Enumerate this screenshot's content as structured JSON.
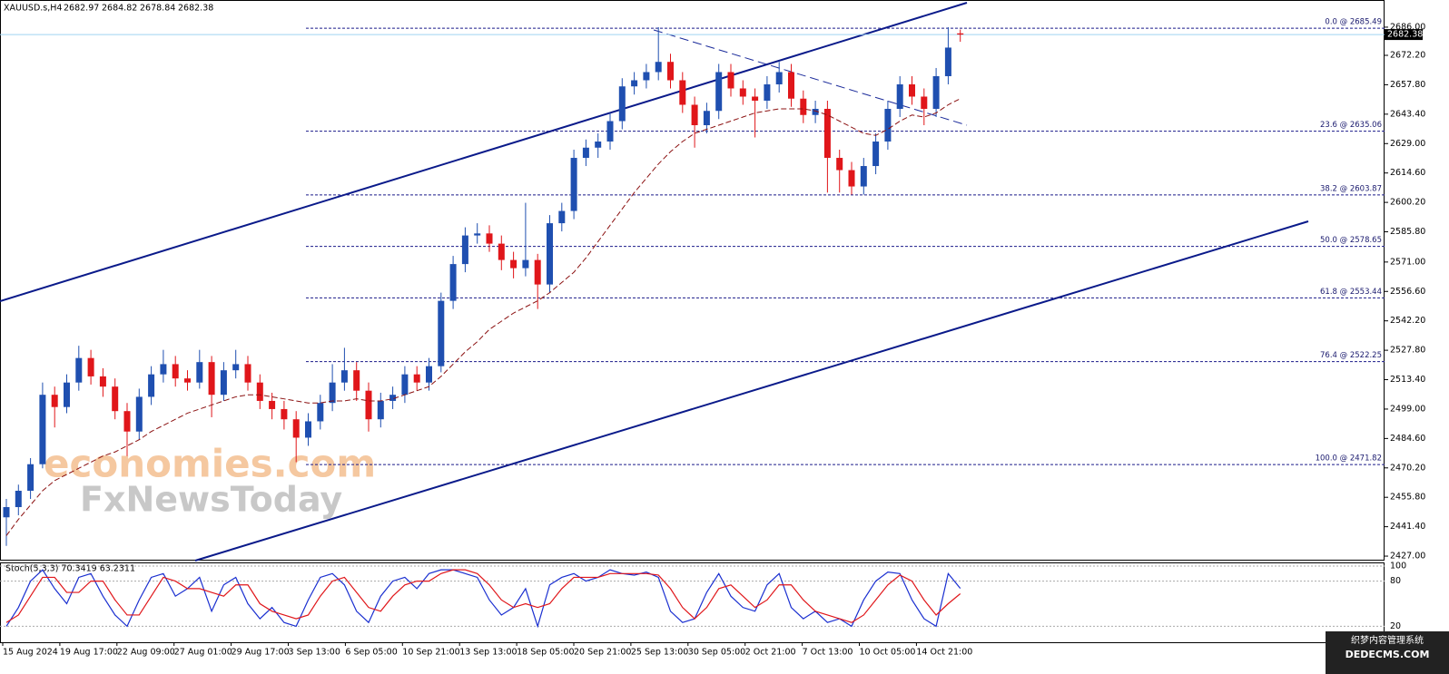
{
  "header": {
    "symbol": "XAUUSD.s,H4"
  },
  "chart_data": [
    {
      "type": "candlestick",
      "up_color": "#1f4fb0",
      "down_color": "#e0161a",
      "ma_color": "#8b1010",
      "ylim": [
        2424.8,
        2699.3
      ],
      "yticks": [
        {
          "value": 2686,
          "label": "2686.00"
        },
        {
          "value": 2672.2,
          "label": "2672.20"
        },
        {
          "value": 2657.8,
          "label": "2657.80"
        },
        {
          "value": 2643.4,
          "label": "2643.40"
        },
        {
          "value": 2629,
          "label": "2629.00"
        },
        {
          "value": 2614.6,
          "label": "2614.60"
        },
        {
          "value": 2600.2,
          "label": "2600.20"
        },
        {
          "value": 2585.8,
          "label": "2585.80"
        },
        {
          "value": 2571,
          "label": "2571.00"
        },
        {
          "value": 2556.6,
          "label": "2556.60"
        },
        {
          "value": 2542.2,
          "label": "2542.20"
        },
        {
          "value": 2527.8,
          "label": "2527.80"
        },
        {
          "value": 2513.4,
          "label": "2513.40"
        },
        {
          "value": 2499,
          "label": "2499.00"
        },
        {
          "value": 2484.6,
          "label": "2484.60"
        },
        {
          "value": 2470.2,
          "label": "2470.20"
        },
        {
          "value": 2455.8,
          "label": "2455.80"
        },
        {
          "value": 2441.4,
          "label": "2441.40"
        },
        {
          "value": 2427,
          "label": "2427.00"
        }
      ],
      "fib_levels": [
        {
          "value": 2685.49,
          "label": "0.0 @ 2685.49"
        },
        {
          "value": 2635.06,
          "label": "23.6 @ 2635.06"
        },
        {
          "value": 2603.87,
          "label": "38.2 @ 2603.87"
        },
        {
          "value": 2578.65,
          "label": "50.0 @ 2578.65"
        },
        {
          "value": 2553.44,
          "label": "61.8 @ 2553.44"
        },
        {
          "value": 2522.25,
          "label": "76.4 @ 2522.25"
        },
        {
          "value": 2471.82,
          "label": "100.0 @ 2471.82"
        }
      ],
      "candles": [
        [
          2446,
          2455,
          2432,
          2451
        ],
        [
          2451,
          2462,
          2447,
          2459
        ],
        [
          2459,
          2475,
          2455,
          2472
        ],
        [
          2472,
          2512,
          2470,
          2506
        ],
        [
          2506,
          2510,
          2490,
          2500
        ],
        [
          2500,
          2516,
          2497,
          2512
        ],
        [
          2512,
          2530,
          2508,
          2524
        ],
        [
          2524,
          2528,
          2511,
          2515
        ],
        [
          2515,
          2519,
          2505,
          2510
        ],
        [
          2510,
          2514,
          2494,
          2498
        ],
        [
          2498,
          2502,
          2476,
          2488
        ],
        [
          2488,
          2509,
          2484,
          2505
        ],
        [
          2505,
          2520,
          2501,
          2516
        ],
        [
          2516,
          2528,
          2512,
          2521
        ],
        [
          2521,
          2525,
          2510,
          2514
        ],
        [
          2514,
          2518,
          2508,
          2512
        ],
        [
          2512,
          2528,
          2509,
          2522
        ],
        [
          2522,
          2525,
          2495,
          2506
        ],
        [
          2506,
          2522,
          2503,
          2518
        ],
        [
          2518,
          2528,
          2514,
          2521
        ],
        [
          2521,
          2525,
          2508,
          2512
        ],
        [
          2512,
          2516,
          2499,
          2503
        ],
        [
          2503,
          2507,
          2494,
          2499
        ],
        [
          2499,
          2503,
          2489,
          2494
        ],
        [
          2494,
          2498,
          2473,
          2485
        ],
        [
          2485,
          2497,
          2481,
          2493
        ],
        [
          2493,
          2506,
          2489,
          2502
        ],
        [
          2502,
          2521,
          2498,
          2512
        ],
        [
          2512,
          2529,
          2508,
          2518
        ],
        [
          2518,
          2522,
          2503,
          2508
        ],
        [
          2508,
          2512,
          2488,
          2494
        ],
        [
          2494,
          2507,
          2490,
          2503
        ],
        [
          2503,
          2510,
          2499,
          2506
        ],
        [
          2506,
          2520,
          2502,
          2516
        ],
        [
          2516,
          2520,
          2508,
          2512
        ],
        [
          2512,
          2524,
          2508,
          2520
        ],
        [
          2520,
          2556,
          2517,
          2552
        ],
        [
          2552,
          2574,
          2548,
          2570
        ],
        [
          2570,
          2588,
          2566,
          2584
        ],
        [
          2584,
          2590,
          2580,
          2585
        ],
        [
          2585,
          2589,
          2576,
          2580
        ],
        [
          2580,
          2584,
          2567,
          2572
        ],
        [
          2572,
          2576,
          2563,
          2568
        ],
        [
          2568,
          2600,
          2564,
          2572
        ],
        [
          2572,
          2575,
          2548,
          2560
        ],
        [
          2560,
          2594,
          2556,
          2590
        ],
        [
          2590,
          2600,
          2586,
          2596
        ],
        [
          2596,
          2626,
          2592,
          2622
        ],
        [
          2622,
          2631,
          2618,
          2627
        ],
        [
          2627,
          2634,
          2622,
          2630
        ],
        [
          2630,
          2644,
          2626,
          2640
        ],
        [
          2640,
          2661,
          2636,
          2657
        ],
        [
          2657,
          2664,
          2653,
          2660
        ],
        [
          2660,
          2668,
          2656,
          2664
        ],
        [
          2664,
          2686,
          2660,
          2669
        ],
        [
          2669,
          2673,
          2656,
          2660
        ],
        [
          2660,
          2664,
          2644,
          2648
        ],
        [
          2648,
          2652,
          2627,
          2638
        ],
        [
          2638,
          2649,
          2634,
          2645
        ],
        [
          2645,
          2668,
          2641,
          2664
        ],
        [
          2664,
          2668,
          2652,
          2656
        ],
        [
          2656,
          2660,
          2648,
          2652
        ],
        [
          2652,
          2656,
          2632,
          2650
        ],
        [
          2650,
          2662,
          2646,
          2658
        ],
        [
          2658,
          2669,
          2654,
          2664
        ],
        [
          2664,
          2668,
          2647,
          2651
        ],
        [
          2651,
          2655,
          2639,
          2643
        ],
        [
          2643,
          2650,
          2639,
          2646
        ],
        [
          2646,
          2650,
          2605,
          2622
        ],
        [
          2622,
          2626,
          2605,
          2616
        ],
        [
          2616,
          2620,
          2604,
          2608
        ],
        [
          2608,
          2622,
          2604,
          2618
        ],
        [
          2618,
          2634,
          2614,
          2630
        ],
        [
          2630,
          2650,
          2626,
          2646
        ],
        [
          2646,
          2662,
          2642,
          2658
        ],
        [
          2658,
          2662,
          2648,
          2652
        ],
        [
          2652,
          2656,
          2638,
          2646
        ],
        [
          2646,
          2666,
          2642,
          2662
        ],
        [
          2662,
          2686,
          2658,
          2676
        ],
        [
          2682.97,
          2684.82,
          2678.84,
          2682.38
        ]
      ],
      "ma": [
        2437,
        2445,
        2452,
        2459,
        2464,
        2467,
        2470,
        2473,
        2476,
        2478,
        2481,
        2484,
        2488,
        2491,
        2494,
        2497,
        2499,
        2501,
        2503,
        2505,
        2506,
        2506,
        2505,
        2504,
        2503,
        2502,
        2502,
        2503,
        2503,
        2504,
        2503,
        2503,
        2504,
        2506,
        2508,
        2510,
        2515,
        2521,
        2527,
        2532,
        2538,
        2542,
        2546,
        2549,
        2552,
        2556,
        2561,
        2566,
        2573,
        2581,
        2589,
        2597,
        2605,
        2612,
        2619,
        2625,
        2630,
        2634,
        2636,
        2638,
        2640,
        2642,
        2644,
        2645,
        2646,
        2646,
        2646,
        2645,
        2643,
        2640,
        2637,
        2634,
        2633,
        2636,
        2640,
        2643,
        2642,
        2644,
        2648,
        2651
      ],
      "watermark": [
        "economies.com",
        "FxNewsToday"
      ]
    },
    {
      "type": "stochastic",
      "title": "Stoch(5,3,3) 70.3419 63.2311",
      "ylim": [
        0,
        100
      ],
      "yticks": [
        100,
        80,
        20
      ],
      "series": [
        {
          "color": "#1a2fd0",
          "values": [
            20,
            45,
            80,
            95,
            70,
            50,
            85,
            90,
            60,
            35,
            20,
            55,
            85,
            90,
            60,
            70,
            85,
            40,
            75,
            85,
            50,
            30,
            45,
            25,
            20,
            55,
            85,
            90,
            75,
            40,
            25,
            60,
            80,
            85,
            70,
            90,
            95,
            95,
            90,
            85,
            55,
            35,
            45,
            70,
            20,
            75,
            85,
            90,
            80,
            85,
            95,
            90,
            88,
            92,
            85,
            40,
            25,
            30,
            65,
            90,
            60,
            45,
            40,
            75,
            90,
            45,
            30,
            40,
            25,
            30,
            20,
            55,
            80,
            92,
            90,
            55,
            30,
            20,
            90,
            70.3419
          ]
        },
        {
          "color": "#e0161a",
          "values": [
            25,
            35,
            60,
            85,
            85,
            65,
            65,
            80,
            80,
            55,
            35,
            35,
            60,
            85,
            80,
            70,
            70,
            65,
            60,
            75,
            75,
            50,
            40,
            35,
            30,
            35,
            60,
            80,
            85,
            65,
            45,
            40,
            60,
            75,
            80,
            80,
            90,
            95,
            95,
            90,
            75,
            55,
            45,
            50,
            45,
            50,
            70,
            85,
            85,
            85,
            90,
            90,
            90,
            90,
            88,
            70,
            45,
            30,
            45,
            70,
            75,
            60,
            45,
            55,
            75,
            75,
            55,
            40,
            35,
            30,
            25,
            35,
            55,
            75,
            88,
            80,
            55,
            35,
            50,
            63.2311
          ]
        }
      ]
    }
  ],
  "time_axis": {
    "labels": [
      "15 Aug 2024",
      "19 Aug 17:00",
      "22 Aug 09:00",
      "27 Aug 01:00",
      "29 Aug 17:00",
      "3 Sep 13:00",
      "6 Sep 05:00",
      "10 Sep 21:00",
      "13 Sep 13:00",
      "18 Sep 05:00",
      "20 Sep 21:00",
      "25 Sep 13:00",
      "30 Sep 05:00",
      "2 Oct 21:00",
      "7 Oct 13:00",
      "10 Oct 05:00",
      "14 Oct 21:00"
    ]
  },
  "corner_watermark": [
    "织梦内容管理系统",
    "DEDECMS.COM"
  ]
}
